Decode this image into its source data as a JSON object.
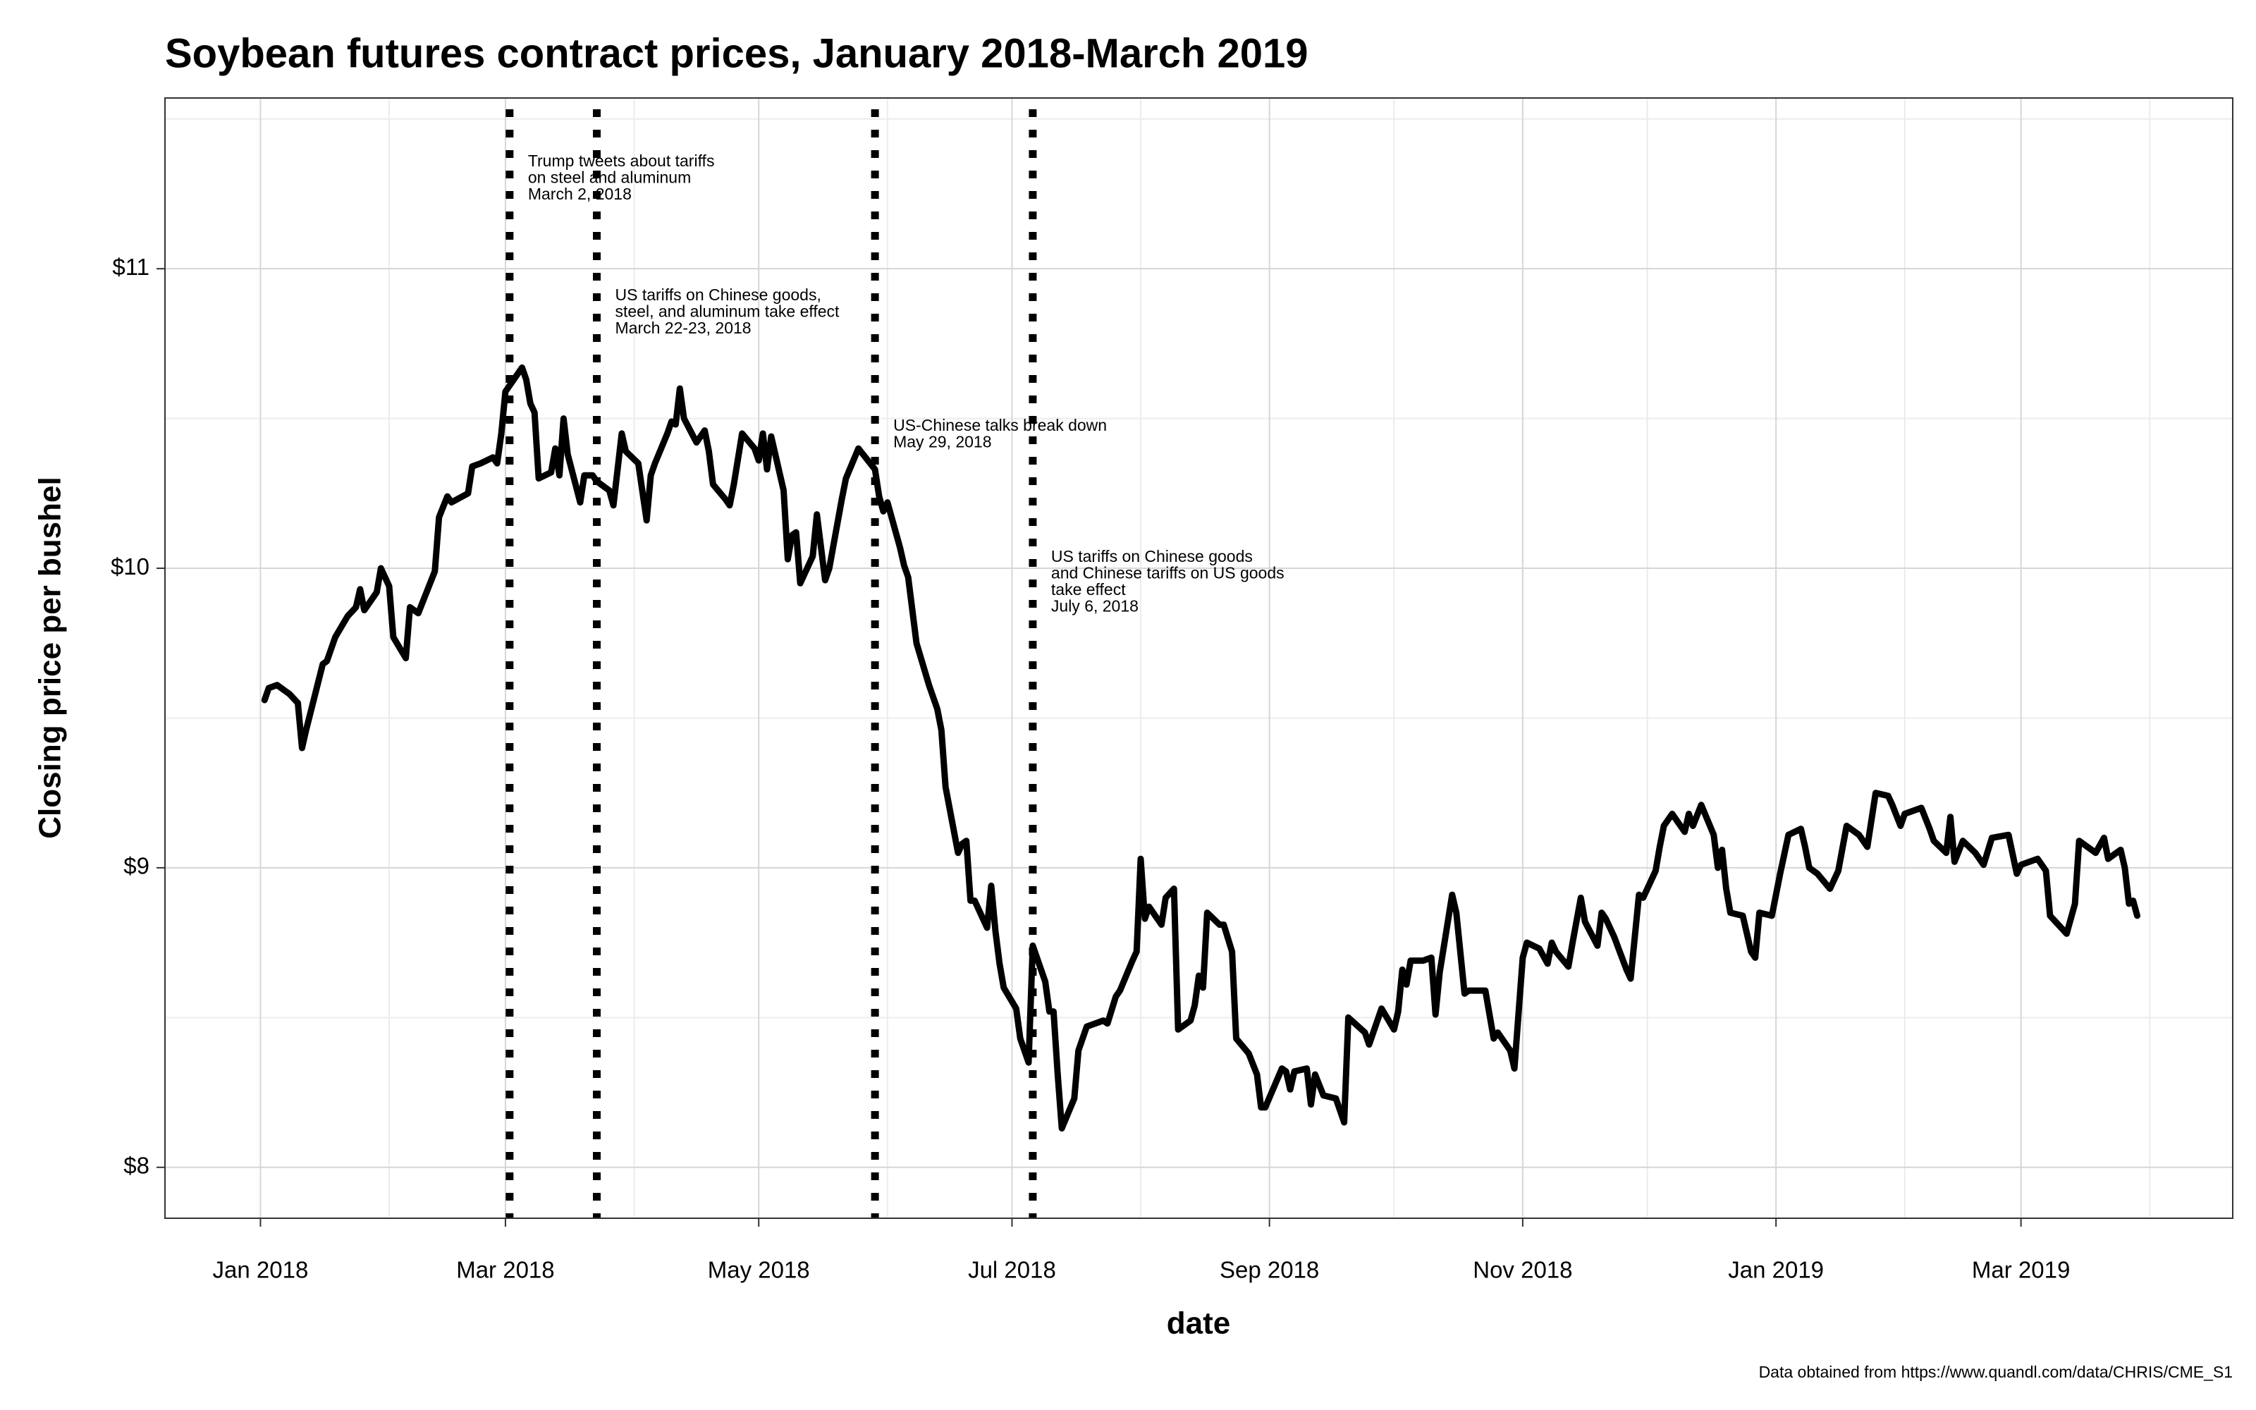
{
  "chart_data": {
    "type": "line",
    "title": "Soybean futures contract prices, January 2018-March 2019",
    "x_label": "date",
    "y_label": "Closing price per bushel",
    "caption": "Data obtained from https://www.quandl.com/data/CHRIS/CME_S1",
    "color": "#000000",
    "grid": true,
    "xlim": [
      "2017-12-09",
      "2019-04-21"
    ],
    "ylim": [
      7.83,
      11.57
    ],
    "xticks": [
      {
        "value": "2018-01-01",
        "label": "Jan 2018"
      },
      {
        "value": "2018-03-01",
        "label": "Mar 2018"
      },
      {
        "value": "2018-05-01",
        "label": "May 2018"
      },
      {
        "value": "2018-07-01",
        "label": "Jul 2018"
      },
      {
        "value": "2018-09-01",
        "label": "Sep 2018"
      },
      {
        "value": "2018-11-01",
        "label": "Nov 2018"
      },
      {
        "value": "2019-01-01",
        "label": "Jan 2019"
      },
      {
        "value": "2019-03-01",
        "label": "Mar 2019"
      }
    ],
    "x_minor_ticks": [
      "2018-02-01",
      "2018-04-01",
      "2018-06-01",
      "2018-08-01",
      "2018-10-01",
      "2018-12-01",
      "2019-02-01",
      "2019-04-01"
    ],
    "yticks": [
      {
        "value": 8,
        "label": "$8"
      },
      {
        "value": 9,
        "label": "$9"
      },
      {
        "value": 10,
        "label": "$10"
      },
      {
        "value": 11,
        "label": "$11"
      }
    ],
    "y_minor_ticks": [
      8.5,
      9.5,
      10.5,
      11.5
    ],
    "annotations": [
      {
        "x": "2018-03-02",
        "text": [
          "Trump tweets about tariffs",
          "on steel and aluminum",
          "March 2, 2018"
        ]
      },
      {
        "x": "2018-03-23",
        "text": [
          "US tariffs on Chinese goods,",
          "steel, and aluminum take effect",
          "March 22-23, 2018"
        ]
      },
      {
        "x": "2018-05-29",
        "text": [
          "US-Chinese talks break down",
          "May 29, 2018"
        ]
      },
      {
        "x": "2018-07-06",
        "text": [
          "US tariffs on Chinese goods",
          "and Chinese tariffs on US goods",
          "take effect",
          "July 6, 2018"
        ]
      }
    ],
    "x": [
      "2018-01-02",
      "2018-01-03",
      "2018-01-05",
      "2018-01-08",
      "2018-01-10",
      "2018-01-11",
      "2018-01-12",
      "2018-01-16",
      "2018-01-17",
      "2018-01-19",
      "2018-01-22",
      "2018-01-24",
      "2018-01-25",
      "2018-01-26",
      "2018-01-29",
      "2018-01-30",
      "2018-02-01",
      "2018-02-02",
      "2018-02-05",
      "2018-02-06",
      "2018-02-08",
      "2018-02-12",
      "2018-02-13",
      "2018-02-15",
      "2018-02-16",
      "2018-02-20",
      "2018-02-21",
      "2018-02-23",
      "2018-02-26",
      "2018-02-27",
      "2018-02-28",
      "2018-03-01",
      "2018-03-05",
      "2018-03-06",
      "2018-03-07",
      "2018-03-08",
      "2018-03-09",
      "2018-03-12",
      "2018-03-13",
      "2018-03-14",
      "2018-03-15",
      "2018-03-16",
      "2018-03-19",
      "2018-03-20",
      "2018-03-22",
      "2018-03-23",
      "2018-03-26",
      "2018-03-27",
      "2018-03-29",
      "2018-03-30",
      "2018-04-02",
      "2018-04-04",
      "2018-04-05",
      "2018-04-06",
      "2018-04-09",
      "2018-04-10",
      "2018-04-11",
      "2018-04-12",
      "2018-04-13",
      "2018-04-16",
      "2018-04-18",
      "2018-04-19",
      "2018-04-20",
      "2018-04-23",
      "2018-04-24",
      "2018-04-25",
      "2018-04-27",
      "2018-04-30",
      "2018-05-01",
      "2018-05-02",
      "2018-05-03",
      "2018-05-04",
      "2018-05-07",
      "2018-05-08",
      "2018-05-09",
      "2018-05-10",
      "2018-05-11",
      "2018-05-14",
      "2018-05-15",
      "2018-05-17",
      "2018-05-18",
      "2018-05-21",
      "2018-05-22",
      "2018-05-25",
      "2018-05-29",
      "2018-05-30",
      "2018-05-31",
      "2018-06-01",
      "2018-06-04",
      "2018-06-05",
      "2018-06-06",
      "2018-06-08",
      "2018-06-11",
      "2018-06-13",
      "2018-06-14",
      "2018-06-15",
      "2018-06-18",
      "2018-06-19",
      "2018-06-20",
      "2018-06-21",
      "2018-06-22",
      "2018-06-25",
      "2018-06-26",
      "2018-06-27",
      "2018-06-28",
      "2018-06-29",
      "2018-07-02",
      "2018-07-03",
      "2018-07-05",
      "2018-07-06",
      "2018-07-09",
      "2018-07-10",
      "2018-07-11",
      "2018-07-12",
      "2018-07-13",
      "2018-07-16",
      "2018-07-17",
      "2018-07-19",
      "2018-07-23",
      "2018-07-24",
      "2018-07-26",
      "2018-07-27",
      "2018-07-30",
      "2018-07-31",
      "2018-08-01",
      "2018-08-02",
      "2018-08-03",
      "2018-08-06",
      "2018-08-07",
      "2018-08-09",
      "2018-08-10",
      "2018-08-13",
      "2018-08-14",
      "2018-08-15",
      "2018-08-16",
      "2018-08-17",
      "2018-08-20",
      "2018-08-21",
      "2018-08-23",
      "2018-08-24",
      "2018-08-27",
      "2018-08-29",
      "2018-08-30",
      "2018-08-31",
      "2018-09-04",
      "2018-09-05",
      "2018-09-06",
      "2018-09-07",
      "2018-09-10",
      "2018-09-11",
      "2018-09-12",
      "2018-09-14",
      "2018-09-17",
      "2018-09-19",
      "2018-09-20",
      "2018-09-24",
      "2018-09-25",
      "2018-09-28",
      "2018-10-01",
      "2018-10-02",
      "2018-10-03",
      "2018-10-04",
      "2018-10-05",
      "2018-10-08",
      "2018-10-10",
      "2018-10-11",
      "2018-10-12",
      "2018-10-15",
      "2018-10-16",
      "2018-10-18",
      "2018-10-19",
      "2018-10-23",
      "2018-10-25",
      "2018-10-26",
      "2018-10-29",
      "2018-10-30",
      "2018-11-01",
      "2018-11-02",
      "2018-11-05",
      "2018-11-07",
      "2018-11-08",
      "2018-11-09",
      "2018-11-12",
      "2018-11-13",
      "2018-11-15",
      "2018-11-16",
      "2018-11-19",
      "2018-11-20",
      "2018-11-21",
      "2018-11-23",
      "2018-11-26",
      "2018-11-27",
      "2018-11-29",
      "2018-11-30",
      "2018-12-03",
      "2018-12-04",
      "2018-12-05",
      "2018-12-07",
      "2018-12-10",
      "2018-12-11",
      "2018-12-12",
      "2018-12-14",
      "2018-12-17",
      "2018-12-18",
      "2018-12-19",
      "2018-12-20",
      "2018-12-21",
      "2018-12-24",
      "2018-12-26",
      "2018-12-27",
      "2018-12-28",
      "2018-12-31",
      "2019-01-02",
      "2019-01-04",
      "2019-01-07",
      "2019-01-08",
      "2019-01-09",
      "2019-01-11",
      "2019-01-14",
      "2019-01-16",
      "2019-01-18",
      "2019-01-21",
      "2019-01-23",
      "2019-01-25",
      "2019-01-28",
      "2019-01-29",
      "2019-01-31",
      "2019-02-01",
      "2019-02-05",
      "2019-02-07",
      "2019-02-08",
      "2019-02-11",
      "2019-02-12",
      "2019-02-13",
      "2019-02-15",
      "2019-02-18",
      "2019-02-20",
      "2019-02-22",
      "2019-02-26",
      "2019-02-28",
      "2019-03-01",
      "2019-03-05",
      "2019-03-07",
      "2019-03-08",
      "2019-03-12",
      "2019-03-14",
      "2019-03-15",
      "2019-03-19",
      "2019-03-21",
      "2019-03-22",
      "2019-03-25",
      "2019-03-26",
      "2019-03-27",
      "2019-03-28",
      "2019-03-29"
    ],
    "values": [
      9.56,
      9.6,
      9.61,
      9.58,
      9.55,
      9.4,
      9.46,
      9.68,
      9.69,
      9.77,
      9.84,
      9.87,
      9.93,
      9.86,
      9.92,
      10.0,
      9.94,
      9.77,
      9.7,
      9.87,
      9.85,
      9.99,
      10.17,
      10.24,
      10.22,
      10.25,
      10.34,
      10.35,
      10.37,
      10.35,
      10.45,
      10.59,
      10.67,
      10.63,
      10.55,
      10.52,
      10.3,
      10.32,
      10.4,
      10.31,
      10.5,
      10.38,
      10.22,
      10.31,
      10.31,
      10.29,
      10.26,
      10.21,
      10.45,
      10.39,
      10.35,
      10.16,
      10.31,
      10.35,
      10.45,
      10.49,
      10.48,
      10.6,
      10.5,
      10.42,
      10.46,
      10.39,
      10.28,
      10.23,
      10.21,
      10.28,
      10.45,
      10.4,
      10.36,
      10.45,
      10.33,
      10.44,
      10.26,
      10.03,
      10.11,
      10.12,
      9.95,
      10.04,
      10.18,
      9.96,
      10.0,
      10.23,
      10.3,
      10.4,
      10.33,
      10.24,
      10.19,
      10.22,
      10.07,
      10.01,
      9.97,
      9.75,
      9.61,
      9.53,
      9.46,
      9.27,
      9.05,
      9.08,
      9.09,
      8.89,
      8.89,
      8.8,
      8.94,
      8.79,
      8.68,
      8.6,
      8.53,
      8.43,
      8.35,
      8.74,
      8.62,
      8.52,
      8.52,
      8.31,
      8.13,
      8.23,
      8.39,
      8.47,
      8.49,
      8.48,
      8.57,
      8.59,
      8.69,
      8.72,
      9.03,
      8.83,
      8.87,
      8.81,
      8.9,
      8.93,
      8.46,
      8.49,
      8.54,
      8.64,
      8.6,
      8.85,
      8.81,
      8.81,
      8.72,
      8.43,
      8.38,
      8.31,
      8.2,
      8.2,
      8.33,
      8.32,
      8.26,
      8.32,
      8.33,
      8.21,
      8.31,
      8.24,
      8.23,
      8.15,
      8.5,
      8.45,
      8.41,
      8.53,
      8.46,
      8.52,
      8.66,
      8.61,
      8.69,
      8.69,
      8.7,
      8.51,
      8.65,
      8.91,
      8.85,
      8.58,
      8.59,
      8.59,
      8.43,
      8.45,
      8.39,
      8.33,
      8.7,
      8.75,
      8.73,
      8.68,
      8.75,
      8.72,
      8.67,
      8.75,
      8.9,
      8.82,
      8.74,
      8.85,
      8.83,
      8.77,
      8.66,
      8.63,
      8.91,
      8.9,
      8.99,
      9.07,
      9.14,
      9.18,
      9.12,
      9.18,
      9.14,
      9.21,
      9.11,
      9.0,
      9.06,
      8.93,
      8.85,
      8.84,
      8.72,
      8.7,
      8.85,
      8.84,
      8.98,
      9.11,
      9.13,
      9.07,
      9.0,
      8.98,
      8.93,
      8.99,
      9.14,
      9.11,
      9.07,
      9.25,
      9.24,
      9.21,
      9.14,
      9.18,
      9.2,
      9.13,
      9.09,
      9.05,
      9.17,
      9.02,
      9.09,
      9.05,
      9.01,
      9.1,
      9.11,
      8.98,
      9.01,
      9.03,
      8.99,
      8.84,
      8.78,
      8.88,
      9.09,
      9.05,
      9.1,
      9.03,
      9.06,
      9.0,
      8.88,
      8.89,
      8.84
    ]
  }
}
